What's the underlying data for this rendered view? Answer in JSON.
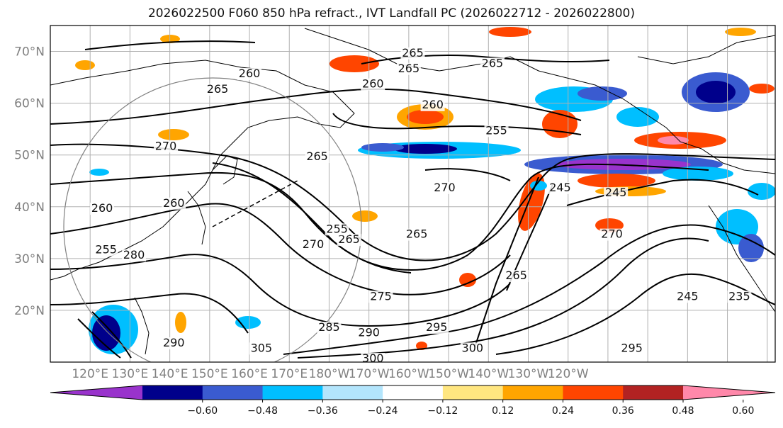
{
  "title": "2026022500 F060 850 hPa refract., IVT Landfall PC (2026022712 - 2026022800)",
  "map": {
    "lat_ticks": [
      "70°N",
      "60°N",
      "50°N",
      "40°N",
      "30°N",
      "20°N"
    ],
    "lon_ticks": [
      "120°E",
      "130°E",
      "140°E",
      "150°E",
      "160°E",
      "170°E",
      "180°W",
      "170°W",
      "160°W",
      "150°W",
      "140°W",
      "130°W",
      "120°W"
    ],
    "contour_labels": [
      {
        "text": "260",
        "lon": 160,
        "lat": 65
      },
      {
        "text": "265",
        "lon": 152,
        "lat": 62
      },
      {
        "text": "270",
        "lon": 139,
        "lat": 51
      },
      {
        "text": "260",
        "lon": 191,
        "lat": 63
      },
      {
        "text": "265",
        "lon": 200,
        "lat": 66
      },
      {
        "text": "265",
        "lon": 201,
        "lat": 69
      },
      {
        "text": "260",
        "lon": 206,
        "lat": 59
      },
      {
        "text": "255",
        "lon": 222,
        "lat": 54
      },
      {
        "text": "265",
        "lon": 221,
        "lat": 67
      },
      {
        "text": "265",
        "lon": 177,
        "lat": 49
      },
      {
        "text": "270",
        "lon": 209,
        "lat": 43
      },
      {
        "text": "265",
        "lon": 185,
        "lat": 33
      },
      {
        "text": "265",
        "lon": 202,
        "lat": 34
      },
      {
        "text": "260",
        "lon": 141,
        "lat": 40
      },
      {
        "text": "260",
        "lon": 123,
        "lat": 39
      },
      {
        "text": "255",
        "lon": 124,
        "lat": 31
      },
      {
        "text": "280",
        "lon": 131,
        "lat": 30
      },
      {
        "text": "275",
        "lon": 193,
        "lat": 22
      },
      {
        "text": "285",
        "lon": 180,
        "lat": 16
      },
      {
        "text": "290",
        "lon": 190,
        "lat": 15
      },
      {
        "text": "295",
        "lon": 207,
        "lat": 16
      },
      {
        "text": "300",
        "lon": 191,
        "lat": 10
      },
      {
        "text": "300",
        "lon": 216,
        "lat": 12
      },
      {
        "text": "305",
        "lon": 163,
        "lat": 12
      },
      {
        "text": "290",
        "lon": 141,
        "lat": 13
      },
      {
        "text": "270",
        "lon": 251,
        "lat": 34
      },
      {
        "text": "265",
        "lon": 227,
        "lat": 26
      },
      {
        "text": "245",
        "lon": 238,
        "lat": 43
      },
      {
        "text": "245",
        "lon": 252,
        "lat": 42
      },
      {
        "text": "245",
        "lon": 270,
        "lat": 22
      },
      {
        "text": "235",
        "lon": 283,
        "lat": 22
      },
      {
        "text": "295",
        "lon": 256,
        "lat": 12
      },
      {
        "text": "255",
        "lon": 182,
        "lat": 35
      },
      {
        "text": "270",
        "lon": 176,
        "lat": 32
      }
    ]
  },
  "colorbar": {
    "ticks": [
      "−0.60",
      "−0.48",
      "−0.36",
      "−0.24",
      "−0.12",
      "0.12",
      "0.24",
      "0.36",
      "0.48",
      "0.60"
    ],
    "colors": [
      "#9933cc",
      "#00008b",
      "#3a5bd0",
      "#00bfff",
      "#b3e5fc",
      "#ffffff",
      "#ffe680",
      "#ffa500",
      "#ff4500",
      "#b22222",
      "#ff88aa"
    ]
  }
}
